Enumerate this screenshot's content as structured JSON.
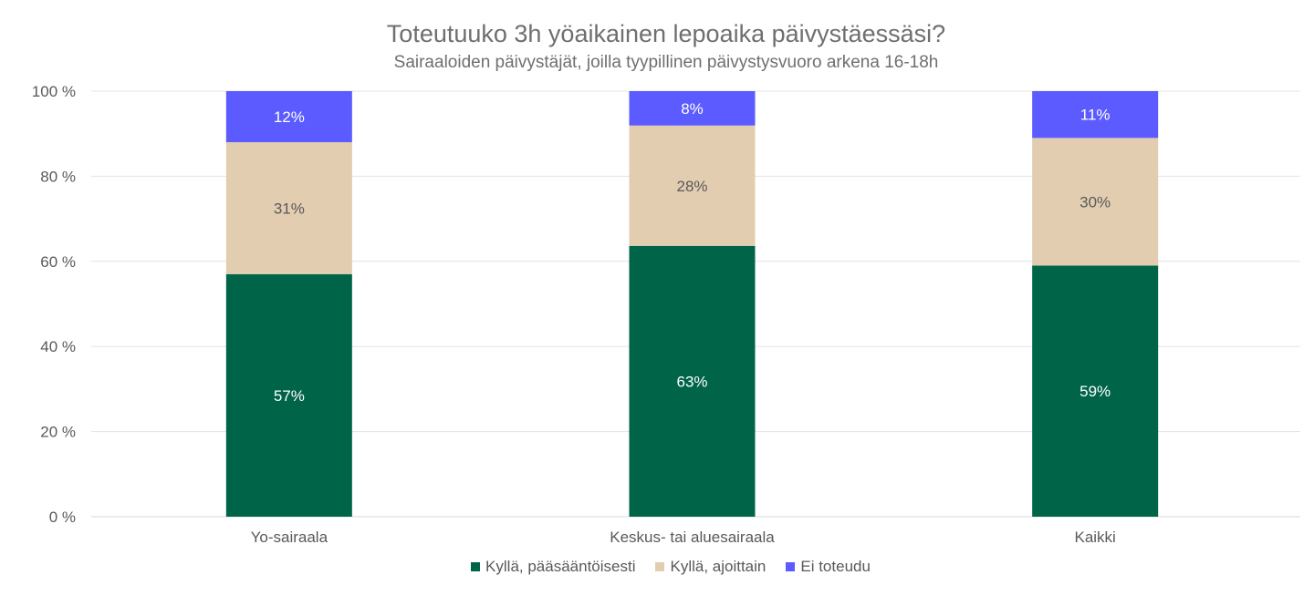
{
  "chart_data": {
    "type": "bar",
    "stacked": true,
    "title": "Toteutuuko 3h yöaikainen lepoaika päivystäessäsi?",
    "subtitle": "Sairaaloiden päivystäjät, joilla tyypillinen päivystysvuoro arkena 16-18h",
    "categories": [
      "Yo-sairaala",
      "Keskus- tai aluesairaala",
      "Kaikki"
    ],
    "series": [
      {
        "name": "Kyllä, pääsääntöisesti",
        "color": "#006449",
        "label_color": "#ffffff",
        "values": [
          57,
          63,
          59
        ]
      },
      {
        "name": "Kyllä, ajoittain",
        "color": "#e2cdb0",
        "label_color": "#595959",
        "values": [
          31,
          28,
          30
        ]
      },
      {
        "name": "Ei toteudu",
        "color": "#5b5bff",
        "label_color": "#ffffff",
        "values": [
          12,
          8,
          11
        ]
      }
    ],
    "y_ticks": [
      "0 %",
      "20 %",
      "40 %",
      "60 %",
      "80 %",
      "100 %"
    ],
    "ylim": [
      0,
      100
    ],
    "grid": true,
    "legend_position": "bottom"
  }
}
